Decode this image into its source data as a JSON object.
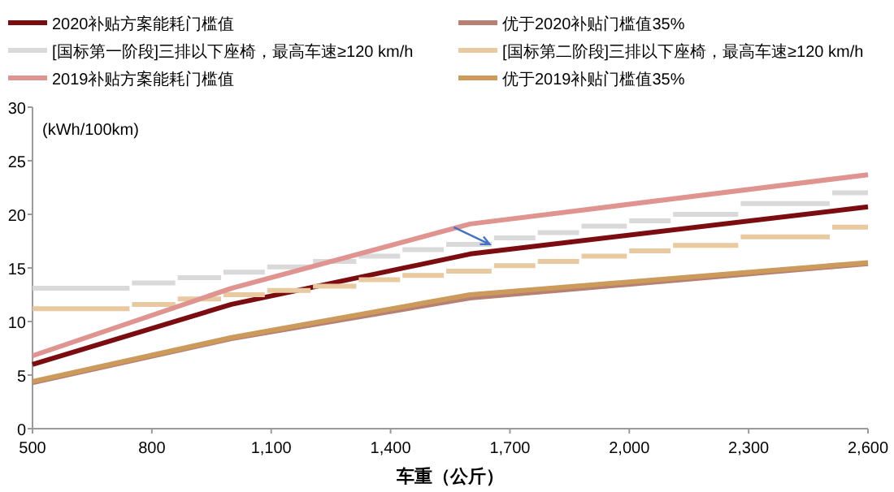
{
  "chart_data": {
    "type": "line",
    "xlabel": "车重（公斤）",
    "ylabel": "(kWh/100km)",
    "xlim": [
      500,
      2600
    ],
    "xticks": [
      {
        "value": 500,
        "label": "500"
      },
      {
        "value": 800,
        "label": "800"
      },
      {
        "value": 1100,
        "label": "1,100"
      },
      {
        "value": 1400,
        "label": "1,400"
      },
      {
        "value": 1700,
        "label": "1,700"
      },
      {
        "value": 2000,
        "label": "2,000"
      },
      {
        "value": 2300,
        "label": "2,300"
      },
      {
        "value": 2600,
        "label": "2,600"
      }
    ],
    "ylim": [
      0,
      30
    ],
    "yticks": [
      0,
      5,
      10,
      15,
      20,
      25,
      30
    ],
    "grid": false,
    "legend": "top",
    "line_style": "solid",
    "marker": "none",
    "series": [
      {
        "name": "2020补贴方案能耗门槛值",
        "color": "#7b0c10",
        "x": [
          500,
          1000,
          1600,
          2600
        ],
        "values": [
          6.0,
          11.6,
          16.3,
          20.7
        ]
      },
      {
        "name": "优于2020补贴门槛值35%",
        "color": "#b88074",
        "x": [
          500,
          1000,
          1600,
          2600
        ],
        "values": [
          4.3,
          8.4,
          12.2,
          15.4
        ]
      },
      {
        "name": "[国标第一阶段]三排以下座椅，最高车速≥120 km/h",
        "type": "step",
        "color": "#d9d9d9",
        "x": [
          500,
          750,
          865,
          980,
          1090,
          1205,
          1320,
          1430,
          1540,
          1660,
          1770,
          1880,
          2000,
          2110,
          2280,
          2510,
          2600
        ],
        "values": [
          13.1,
          13.6,
          14.1,
          14.6,
          15.1,
          15.6,
          16.1,
          16.7,
          17.2,
          17.8,
          18.3,
          18.9,
          19.4,
          20.0,
          21.0,
          22.0,
          22.0
        ]
      },
      {
        "name": "[国标第二阶段]三排以下座椅，最高车速≥120 km/h",
        "type": "step",
        "color": "#e8c9a0",
        "x": [
          500,
          750,
          865,
          980,
          1090,
          1205,
          1320,
          1430,
          1540,
          1660,
          1770,
          1880,
          2000,
          2110,
          2280,
          2510,
          2600
        ],
        "values": [
          11.2,
          11.6,
          12.1,
          12.5,
          12.9,
          13.3,
          13.9,
          14.3,
          14.7,
          15.2,
          15.6,
          16.1,
          16.6,
          17.1,
          17.9,
          18.8,
          18.8
        ]
      },
      {
        "name": "2019补贴方案能耗门槛值",
        "color": "#e09490",
        "x": [
          500,
          1000,
          1600,
          2600
        ],
        "values": [
          6.8,
          13.1,
          19.1,
          23.7
        ]
      },
      {
        "name": "优于2019补贴门槛值35%",
        "color": "#cc9a5a",
        "x": [
          500,
          1000,
          1600,
          2600
        ],
        "values": [
          4.4,
          8.5,
          12.5,
          15.5
        ]
      }
    ]
  }
}
